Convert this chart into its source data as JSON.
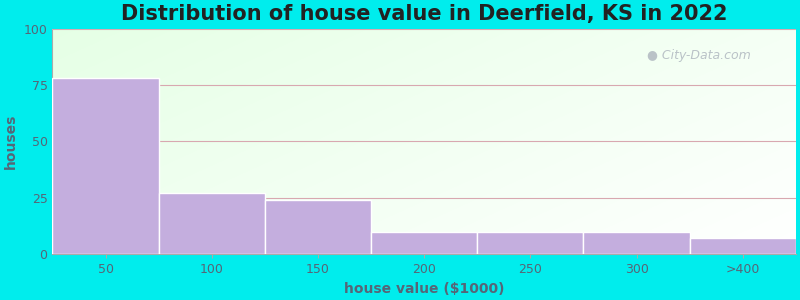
{
  "title": "Distribution of house value in Deerfield, KS in 2022",
  "categories": [
    "50",
    "100",
    "150",
    "200",
    "250",
    "300",
    ">400"
  ],
  "values": [
    78,
    27,
    24,
    10,
    10,
    10,
    7
  ],
  "bar_color": "#c4aede",
  "bar_edgecolor": "#ffffff",
  "xlabel": "house value ($1000)",
  "ylabel": "houses",
  "ylim": [
    0,
    100
  ],
  "yticks": [
    0,
    25,
    50,
    75,
    100
  ],
  "background_outer": "#00eded",
  "grid_color": "#d8a8b0",
  "title_fontsize": 15,
  "axis_label_fontsize": 10,
  "tick_fontsize": 9,
  "watermark_text": "City-Data.com",
  "watermark_color": "#b0b8c0"
}
